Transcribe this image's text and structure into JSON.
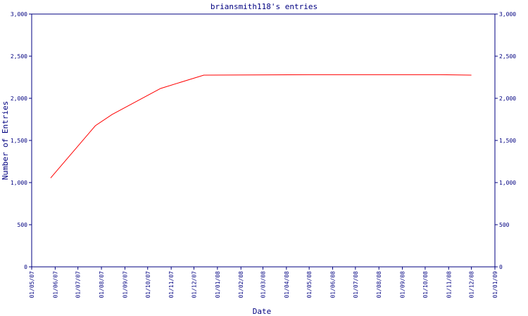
{
  "chart_data": {
    "type": "line",
    "title": "briansmith118's entries",
    "x_label": "Date",
    "y_label": "Number of Entries",
    "x": [
      "2007-05-26",
      "2007-07-24",
      "2007-08-15",
      "2007-10-18",
      "2007-12-14",
      "2008-05-01",
      "2008-10-21",
      "2008-12-01"
    ],
    "series": [
      {
        "name": "entries",
        "color": "#ff0000",
        "values": [
          1055,
          1675,
          1808,
          2117,
          2275,
          2280,
          2280,
          2275
        ]
      }
    ],
    "xlim": [
      "2007-05-01",
      "2009-01-01"
    ],
    "xticks": [
      {
        "value": "2007-05-01",
        "label": "01/05/07"
      },
      {
        "value": "2007-06-01",
        "label": "01/06/07"
      },
      {
        "value": "2007-07-01",
        "label": "01/07/07"
      },
      {
        "value": "2007-08-01",
        "label": "01/08/07"
      },
      {
        "value": "2007-09-01",
        "label": "01/09/07"
      },
      {
        "value": "2007-10-01",
        "label": "01/10/07"
      },
      {
        "value": "2007-11-01",
        "label": "01/11/07"
      },
      {
        "value": "2007-12-01",
        "label": "01/12/07"
      },
      {
        "value": "2008-01-01",
        "label": "01/01/08"
      },
      {
        "value": "2008-02-01",
        "label": "01/02/08"
      },
      {
        "value": "2008-03-01",
        "label": "01/03/08"
      },
      {
        "value": "2008-04-01",
        "label": "01/04/08"
      },
      {
        "value": "2008-05-01",
        "label": "01/05/08"
      },
      {
        "value": "2008-06-01",
        "label": "01/06/08"
      },
      {
        "value": "2008-07-01",
        "label": "01/07/08"
      },
      {
        "value": "2008-08-01",
        "label": "01/08/08"
      },
      {
        "value": "2008-09-01",
        "label": "01/09/08"
      },
      {
        "value": "2008-10-01",
        "label": "01/10/08"
      },
      {
        "value": "2008-11-01",
        "label": "01/11/08"
      },
      {
        "value": "2008-12-01",
        "label": "01/12/08"
      },
      {
        "value": "2009-01-01",
        "label": "01/01/09"
      }
    ],
    "ylim": [
      0,
      3000
    ],
    "yticks": [
      0,
      500,
      {
        "value": 1000,
        "label": "1,000"
      },
      {
        "value": 1500,
        "label": "1,500"
      },
      {
        "value": 2000,
        "label": "2,000"
      },
      {
        "value": 2500,
        "label": "2,500"
      },
      {
        "value": 3000,
        "label": "3,000"
      }
    ],
    "y2lim": [
      0,
      3000
    ],
    "y2ticks": [
      0,
      500,
      {
        "value": 1000,
        "label": "1,000"
      },
      {
        "value": 1500,
        "label": "1,500"
      },
      {
        "value": 2000,
        "label": "2,000"
      },
      {
        "value": 2500,
        "label": "2,500"
      },
      {
        "value": 3000,
        "label": "3,000"
      }
    ],
    "axis_color": "#000080"
  }
}
